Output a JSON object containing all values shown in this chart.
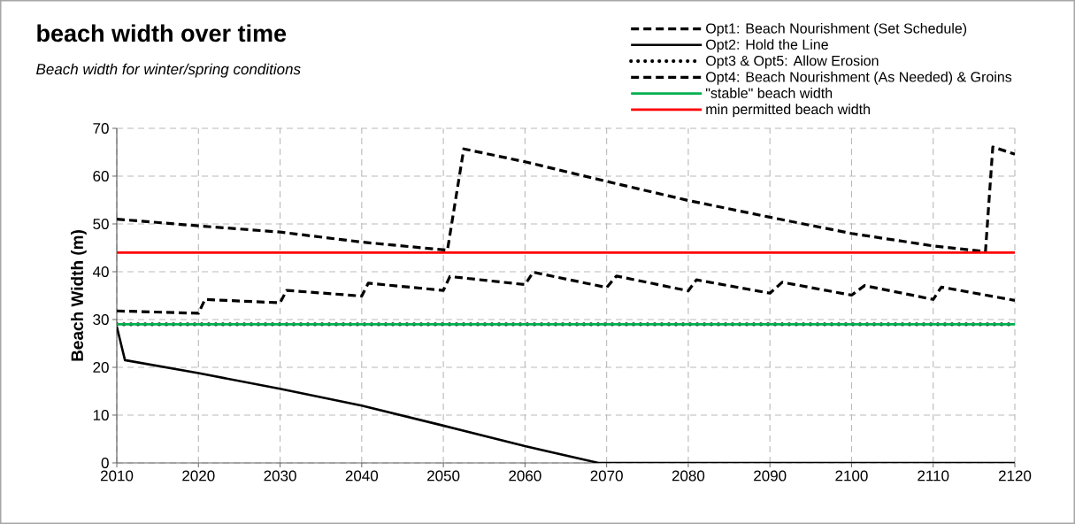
{
  "chart_data": {
    "type": "line",
    "title": "beach width over time",
    "subtitle": "Beach width for winter/spring conditions",
    "ylabel": "Beach Width (m)",
    "xlim": [
      2010,
      2120
    ],
    "xticks": [
      2010,
      2020,
      2030,
      2040,
      2050,
      2060,
      2070,
      2080,
      2090,
      2100,
      2110,
      2120
    ],
    "ylim": [
      0,
      70
    ],
    "yticks": [
      0,
      10,
      20,
      30,
      40,
      50,
      60,
      70
    ],
    "grid": true,
    "legend": "top right",
    "series": [
      {
        "name": "Opt1: Beach Nourishment (Set Schedule)",
        "color": "#000000",
        "line_style": "dashed",
        "x": [
          2010,
          2020,
          2020.8,
          2030,
          2030.8,
          2040,
          2040.8,
          2050,
          2050.8,
          2060,
          2061,
          2070,
          2071.2,
          2080,
          2081,
          2090,
          2091.5,
          2100,
          2101.6,
          2110,
          2111,
          2120
        ],
        "values": [
          31.8,
          31.3,
          34.2,
          33.5,
          36.1,
          34.9,
          37.6,
          36.1,
          39.0,
          37.3,
          39.9,
          36.7,
          39.1,
          36.0,
          38.3,
          35.5,
          37.8,
          35.1,
          37.1,
          34.2,
          36.8,
          34.0
        ]
      },
      {
        "name": "Opt2: Hold the Line",
        "color": "#000000",
        "line_style": "solid",
        "x": [
          2010,
          2011,
          2020,
          2030,
          2040,
          2050,
          2060,
          2069,
          2120
        ],
        "values": [
          28.5,
          21.5,
          18.8,
          15.5,
          12.0,
          7.8,
          3.5,
          0,
          0
        ]
      },
      {
        "name": "Opt3 & Opt5: Allow Erosion",
        "color": "#000000",
        "line_style": "dotted",
        "x": [
          2010,
          2120
        ],
        "values": [
          29,
          29
        ]
      },
      {
        "name": "Opt4: Beach Nourishment (As Needed) & Groins",
        "color": "#000000",
        "line_style": "dashed",
        "x": [
          2010,
          2020,
          2030,
          2040,
          2050.5,
          2052.5,
          2060,
          2070,
          2080,
          2090,
          2100,
          2110,
          2116.4,
          2117.3,
          2120
        ],
        "values": [
          51.0,
          49.6,
          48.3,
          46.2,
          44.5,
          65.7,
          63.0,
          58.9,
          54.9,
          51.4,
          48.0,
          45.4,
          44.2,
          66.1,
          64.6
        ]
      },
      {
        "name": "\"stable\" beach width",
        "color": "#00b050",
        "line_style": "solid",
        "x": [
          2010,
          2120
        ],
        "values": [
          29,
          29
        ]
      },
      {
        "name": "min permitted beach width",
        "color": "#ff0000",
        "line_style": "solid",
        "x": [
          2010,
          2120
        ],
        "values": [
          44,
          44
        ]
      }
    ]
  }
}
